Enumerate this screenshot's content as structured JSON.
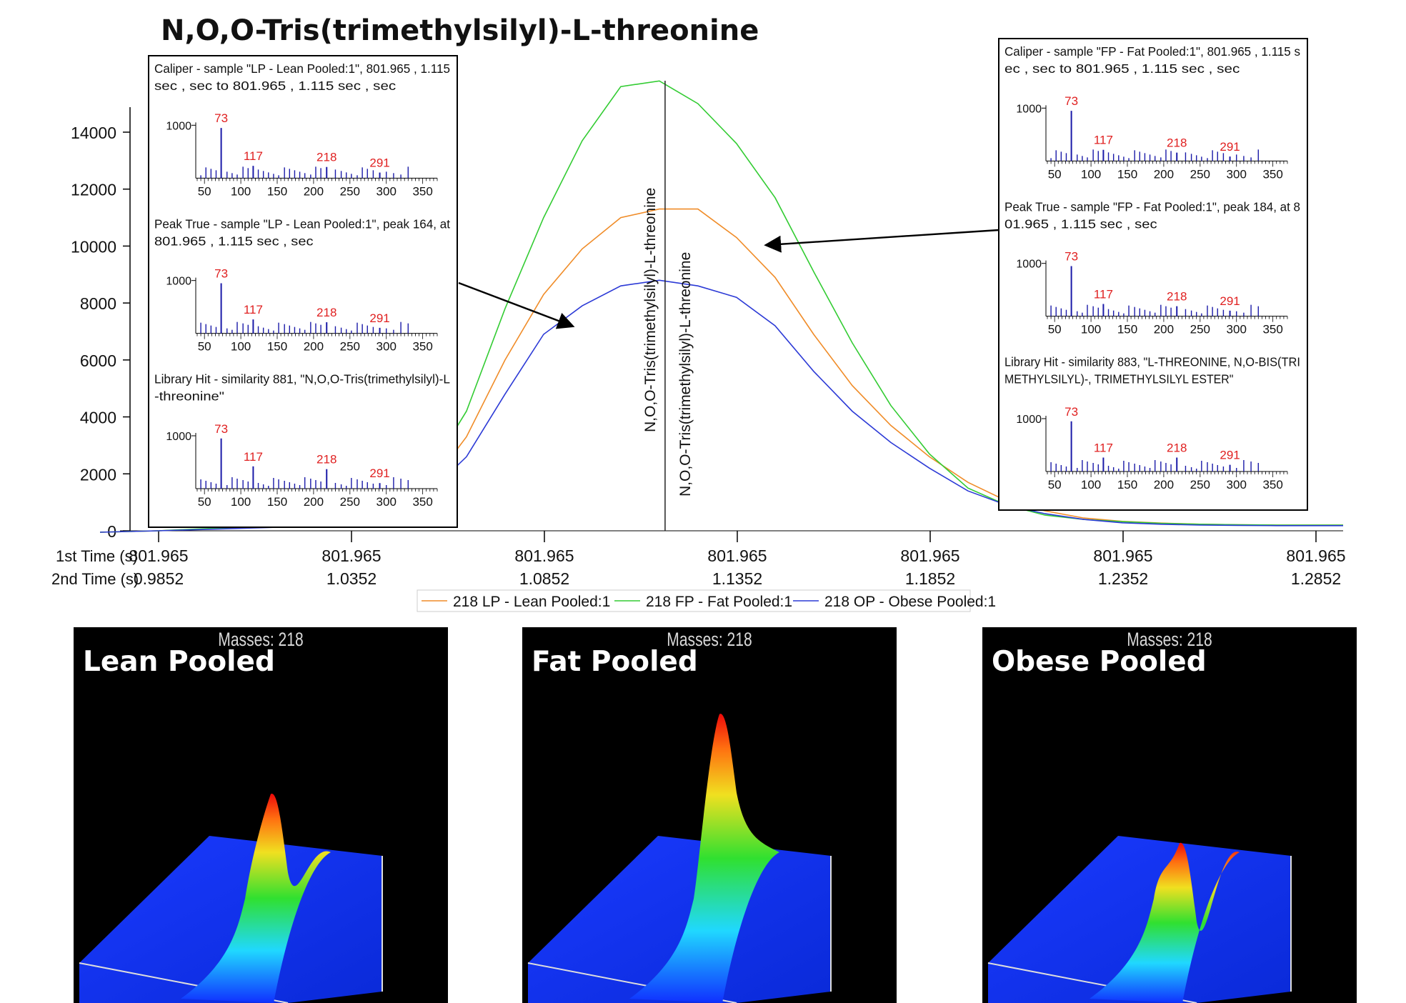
{
  "chart_data": {
    "type": "line",
    "title": "N,O,O-Tris(trimethylsilyl)-L-threonine",
    "xlabel_1": "1st Time (s)",
    "xlabel_2": "2nd Time (s)",
    "x_ticks_1st": [
      "801.965",
      "801.965",
      "801.965",
      "801.965",
      "801.965",
      "801.965",
      "801.965"
    ],
    "x_ticks_2nd": [
      "0.9852",
      "1.0352",
      "1.0852",
      "1.1352",
      "1.1852",
      "1.2352",
      "1.2852"
    ],
    "xlim": [
      0.9852,
      1.2852
    ],
    "ylim": [
      0,
      15000
    ],
    "y_ticks": [
      0,
      2000,
      4000,
      6000,
      8000,
      10000,
      12000,
      14000
    ],
    "grid": false,
    "legend_position": "bottom",
    "peak_labels": [
      "N,O,O-Tris(trimethylsilyl)-L-threonine",
      "N,O,O-Tris(trimethylsilyl)-L-threonine"
    ],
    "peak_x": 1.115,
    "x": [
      0.985,
      0.995,
      1.005,
      1.015,
      1.025,
      1.035,
      1.045,
      1.055,
      1.065,
      1.075,
      1.085,
      1.095,
      1.105,
      1.115,
      1.125,
      1.135,
      1.145,
      1.155,
      1.165,
      1.175,
      1.185,
      1.195,
      1.205,
      1.215,
      1.225,
      1.235,
      1.245,
      1.255,
      1.265,
      1.275,
      1.285
    ],
    "series": [
      {
        "name": "218 LP - Lean Pooled:1",
        "color": "#f08c28",
        "values": [
          0,
          50,
          100,
          150,
          200,
          300,
          600,
          1500,
          3300,
          6000,
          8300,
          9900,
          11000,
          11300,
          11300,
          10300,
          8900,
          6900,
          5100,
          3700,
          2600,
          1700,
          1050,
          700,
          450,
          330,
          270,
          230,
          210,
          200,
          200
        ]
      },
      {
        "name": "218 FP - Fat Pooled:1",
        "color": "#33cc33",
        "values": [
          0,
          60,
          120,
          180,
          250,
          400,
          800,
          2000,
          4200,
          7800,
          11000,
          13700,
          15600,
          15800,
          15000,
          13600,
          11700,
          9100,
          6600,
          4400,
          2700,
          1500,
          900,
          550,
          400,
          320,
          260,
          230,
          210,
          200,
          200
        ]
      },
      {
        "name": "218 OP - Obese Pooled:1",
        "color": "#2c3ad6",
        "values": [
          0,
          40,
          80,
          120,
          180,
          250,
          500,
          1300,
          2600,
          4800,
          6900,
          7900,
          8600,
          8800,
          8600,
          8200,
          7200,
          5600,
          4200,
          3100,
          2200,
          1400,
          900,
          600,
          400,
          280,
          230,
          200,
          190,
          180,
          180
        ]
      }
    ],
    "insets": [
      {
        "position": "left",
        "spectra": [
          {
            "header": [
              "Caliper - sample \"LP - Lean Pooled:1\", 801.965 , 1.115",
              "sec , sec to 801.965 , 1.115 sec , sec"
            ],
            "y_tick": "1000",
            "x_ticks": [
              "50",
              "100",
              "150",
              "200",
              "250",
              "300",
              "350"
            ],
            "peak_labels": [
              {
                "mz": 73,
                "text": "73",
                "rel": 0.9
              },
              {
                "mz": 117,
                "text": "117",
                "rel": 0.22
              },
              {
                "mz": 218,
                "text": "218",
                "rel": 0.2
              },
              {
                "mz": 291,
                "text": "291",
                "rel": 0.1
              }
            ]
          },
          {
            "header": [
              "Peak True - sample \"LP - Lean Pooled:1\", peak 164, at",
              "801.965 , 1.115 sec , sec"
            ],
            "y_tick": "1000",
            "x_ticks": [
              "50",
              "100",
              "150",
              "200",
              "250",
              "300",
              "350"
            ],
            "peak_labels": [
              {
                "mz": 73,
                "text": "73",
                "rel": 0.9
              },
              {
                "mz": 117,
                "text": "117",
                "rel": 0.25
              },
              {
                "mz": 218,
                "text": "218",
                "rel": 0.2
              },
              {
                "mz": 291,
                "text": "291",
                "rel": 0.1
              }
            ]
          },
          {
            "header": [
              "Library Hit - similarity 881, \"N,O,O-Tris(trimethylsilyl)-L",
              "-threonine\""
            ],
            "y_tick": "1000",
            "x_ticks": [
              "50",
              "100",
              "150",
              "200",
              "250",
              "300",
              "350"
            ],
            "peak_labels": [
              {
                "mz": 73,
                "text": "73",
                "rel": 0.9
              },
              {
                "mz": 117,
                "text": "117",
                "rel": 0.4
              },
              {
                "mz": 218,
                "text": "218",
                "rel": 0.35
              },
              {
                "mz": 291,
                "text": "291",
                "rel": 0.1
              }
            ]
          }
        ]
      },
      {
        "position": "right",
        "spectra": [
          {
            "header": [
              "Caliper - sample \"FP - Fat Pooled:1\", 801.965 , 1.115 s",
              "ec , sec to 801.965 , 1.115 sec , sec"
            ],
            "y_tick": "1000",
            "x_ticks": [
              "50",
              "100",
              "150",
              "200",
              "250",
              "300",
              "350"
            ],
            "peak_labels": [
              {
                "mz": 73,
                "text": "73",
                "rel": 0.9
              },
              {
                "mz": 117,
                "text": "117",
                "rel": 0.2
              },
              {
                "mz": 218,
                "text": "218",
                "rel": 0.15
              },
              {
                "mz": 291,
                "text": "291",
                "rel": 0.08
              }
            ]
          },
          {
            "header": [
              "Peak True - sample \"FP - Fat Pooled:1\", peak 184, at 8",
              "01.965 , 1.115 sec , sec"
            ],
            "y_tick": "1000",
            "x_ticks": [
              "50",
              "100",
              "150",
              "200",
              "250",
              "300",
              "350"
            ],
            "peak_labels": [
              {
                "mz": 73,
                "text": "73",
                "rel": 0.9
              },
              {
                "mz": 117,
                "text": "117",
                "rel": 0.22
              },
              {
                "mz": 218,
                "text": "218",
                "rel": 0.18
              },
              {
                "mz": 291,
                "text": "291",
                "rel": 0.1
              }
            ]
          },
          {
            "header": [
              "Library Hit - similarity 883, \"L-THREONINE, N,O-BIS(TRI",
              "METHYLSILYL)-, TRIMETHYLSILYL ESTER\""
            ],
            "y_tick": "1000",
            "x_ticks": [
              "50",
              "100",
              "150",
              "200",
              "250",
              "300",
              "350"
            ],
            "peak_labels": [
              {
                "mz": 73,
                "text": "73",
                "rel": 0.9
              },
              {
                "mz": 117,
                "text": "117",
                "rel": 0.25
              },
              {
                "mz": 218,
                "text": "218",
                "rel": 0.25
              },
              {
                "mz": 291,
                "text": "291",
                "rel": 0.12
              }
            ]
          }
        ]
      }
    ]
  },
  "surface_panels": [
    {
      "label": "Lean Pooled",
      "masses": "Masses: 218",
      "peak_level": 0.62
    },
    {
      "label": "Fat Pooled",
      "masses": "Masses: 218",
      "peak_level": 0.88
    },
    {
      "label": "Obese Pooled",
      "masses": "Masses: 218",
      "peak_level": 0.46
    }
  ]
}
